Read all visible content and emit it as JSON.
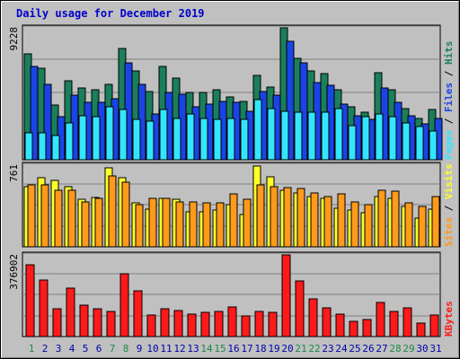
{
  "title": "Daily usage for December 2019",
  "colors": {
    "hits": "#1a7f5a",
    "files": "#1a44e6",
    "pages": "#33e6ff",
    "visits": "#ffff2a",
    "sites": "#ff9a1a",
    "kbytes": "#ff1a1a",
    "weekend_label": "#1a8a4a",
    "weekday_label": "#0000aa",
    "panel": "#c0c0c0"
  },
  "chart_data": [
    {
      "type": "bar",
      "title": "Daily usage for December 2019",
      "ylim": [
        0,
        9228
      ],
      "max_label": "9228",
      "ylabel_parts": [
        "Pages",
        "Files",
        "Hits"
      ],
      "ylabel_separator": " / ",
      "categories": [
        "1",
        "2",
        "3",
        "4",
        "5",
        "6",
        "7",
        "8",
        "9",
        "10",
        "11",
        "12",
        "13",
        "14",
        "15",
        "16",
        "17",
        "18",
        "19",
        "20",
        "21",
        "22",
        "23",
        "24",
        "25",
        "26",
        "27",
        "28",
        "29",
        "30",
        "31"
      ],
      "series": [
        {
          "name": "Hits",
          "values": [
            7400,
            6400,
            3800,
            5500,
            5000,
            4900,
            5300,
            7800,
            6200,
            4800,
            6500,
            5700,
            4700,
            4700,
            4900,
            4400,
            4100,
            5900,
            5100,
            9228,
            7100,
            6200,
            6000,
            4900,
            3700,
            3300,
            6100,
            4900,
            3600,
            2900,
            3500
          ]
        },
        {
          "name": "Files",
          "values": [
            6500,
            5300,
            3000,
            4500,
            4000,
            4000,
            4300,
            6800,
            5300,
            3200,
            4700,
            4600,
            3700,
            3900,
            4100,
            4000,
            3400,
            4800,
            4500,
            8300,
            6800,
            5400,
            5200,
            3900,
            3100,
            2800,
            5000,
            4000,
            3100,
            2500,
            2900
          ]
        },
        {
          "name": "Pages",
          "values": [
            1900,
            1900,
            1700,
            2600,
            3100,
            3000,
            3700,
            3500,
            2800,
            2700,
            3500,
            2900,
            3200,
            2900,
            2800,
            2900,
            2800,
            4200,
            3600,
            3400,
            3300,
            3300,
            3300,
            3600,
            2400,
            3000,
            3200,
            3000,
            2600,
            2300,
            2000
          ]
        }
      ]
    },
    {
      "type": "bar",
      "ylim": [
        0,
        761
      ],
      "max_label": "761",
      "ylabel_parts": [
        "Sites",
        "Visits"
      ],
      "ylabel_separator": " / ",
      "categories": [
        "1",
        "2",
        "3",
        "4",
        "5",
        "6",
        "7",
        "8",
        "9",
        "10",
        "11",
        "12",
        "13",
        "14",
        "15",
        "16",
        "17",
        "18",
        "19",
        "20",
        "21",
        "22",
        "23",
        "24",
        "25",
        "26",
        "27",
        "28",
        "29",
        "30",
        "31"
      ],
      "series": [
        {
          "name": "Visits",
          "values": [
            560,
            640,
            620,
            560,
            440,
            460,
            740,
            640,
            410,
            350,
            450,
            440,
            330,
            330,
            340,
            390,
            300,
            750,
            650,
            530,
            500,
            470,
            450,
            360,
            340,
            320,
            470,
            450,
            380,
            270,
            350
          ]
        },
        {
          "name": "Sites",
          "values": [
            580,
            580,
            530,
            530,
            420,
            450,
            660,
            600,
            390,
            450,
            450,
            420,
            420,
            410,
            410,
            490,
            440,
            580,
            560,
            550,
            540,
            500,
            470,
            490,
            420,
            390,
            530,
            520,
            410,
            380,
            470
          ]
        }
      ]
    },
    {
      "type": "bar",
      "ylim": [
        0,
        376902
      ],
      "max_label": "376902",
      "ylabel_parts": [
        "KBytes"
      ],
      "categories": [
        "1",
        "2",
        "3",
        "4",
        "5",
        "6",
        "7",
        "8",
        "9",
        "10",
        "11",
        "12",
        "13",
        "14",
        "15",
        "16",
        "17",
        "18",
        "19",
        "20",
        "21",
        "22",
        "23",
        "24",
        "25",
        "26",
        "27",
        "28",
        "29",
        "30",
        "31"
      ],
      "series": [
        {
          "name": "KBytes",
          "values": [
            330000,
            260000,
            130000,
            225000,
            145000,
            130000,
            115000,
            290000,
            210000,
            98000,
            130000,
            122000,
            103000,
            112000,
            118000,
            135000,
            94000,
            116000,
            110000,
            376902,
            255000,
            173000,
            131000,
            102000,
            69000,
            80000,
            156000,
            118000,
            131000,
            61000,
            98000
          ]
        }
      ]
    }
  ],
  "weekend_days": [
    1,
    7,
    8,
    14,
    15,
    21,
    22,
    28,
    29
  ]
}
